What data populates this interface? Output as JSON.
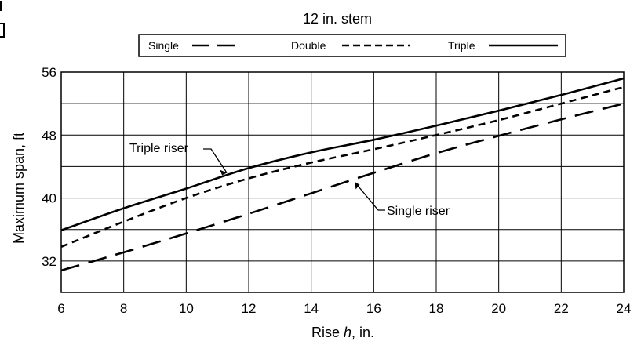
{
  "chart_data": {
    "type": "line",
    "title": "12 in. stem",
    "xlabel_prefix": "Rise ",
    "xlabel_var": "h",
    "xlabel_suffix": ", in.",
    "ylabel": "Maximum span, ft",
    "xlim": [
      6,
      24
    ],
    "ylim": [
      28,
      56
    ],
    "x_ticks": [
      6,
      8,
      10,
      12,
      14,
      16,
      18,
      20,
      22,
      24
    ],
    "y_ticks": [
      32,
      40,
      48,
      56
    ],
    "grid": true,
    "legend_position": "top",
    "x": [
      6,
      8,
      10,
      12,
      14,
      16,
      18,
      20,
      22,
      24
    ],
    "series": [
      {
        "name": "Single",
        "style": "long-dash",
        "values": [
          30.8,
          33.1,
          35.5,
          38.0,
          40.6,
          43.2,
          45.7,
          47.9,
          50.0,
          52.0
        ]
      },
      {
        "name": "Double",
        "style": "short-dash",
        "values": [
          33.8,
          37.0,
          40.0,
          42.5,
          44.5,
          46.2,
          48.0,
          49.9,
          52.0,
          54.1
        ]
      },
      {
        "name": "Triple",
        "style": "solid",
        "values": [
          35.9,
          38.7,
          41.2,
          43.8,
          45.8,
          47.4,
          49.2,
          51.1,
          53.1,
          55.2
        ]
      }
    ],
    "annotations": [
      {
        "text": "Triple riser",
        "series": "Triple",
        "x": 11.3,
        "y": 43.2,
        "side": "left"
      },
      {
        "text": "Single riser",
        "series": "Single",
        "x": 15.4,
        "y": 42.0,
        "side": "right"
      }
    ]
  }
}
